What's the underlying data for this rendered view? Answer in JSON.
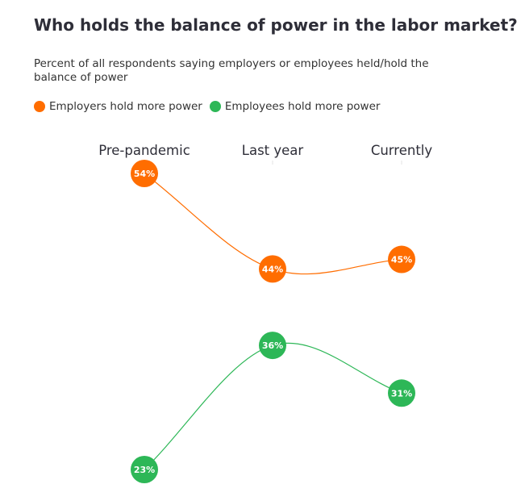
{
  "title": "Who holds the balance of power in the labor market?",
  "subtitle": "Percent of all respondents saying employers or employees held/hold the balance of power",
  "legend": {
    "employers": "Employers hold more power",
    "employees": "Employees hold more power"
  },
  "colors": {
    "employers": "#ff6d00",
    "employees": "#2db757",
    "text": "#2e2e38"
  },
  "chart_data": {
    "type": "line",
    "title": "Who holds the balance of power in the labor market?",
    "subtitle": "Percent of all respondents saying employers or employees held/hold the balance of power",
    "categories": [
      "Pre-pandemic",
      "Last year",
      "Currently"
    ],
    "series": [
      {
        "name": "Employers hold more power",
        "values": [
          54,
          44,
          45
        ],
        "labels": [
          "54%",
          "44%",
          "45%"
        ],
        "color": "#ff6d00"
      },
      {
        "name": "Employees hold more power",
        "values": [
          23,
          36,
          31
        ],
        "labels": [
          "23%",
          "36%",
          "31%"
        ],
        "color": "#2db757"
      }
    ],
    "ylim": [
      23,
      54
    ],
    "grid": false,
    "legend_position": "top-left"
  }
}
